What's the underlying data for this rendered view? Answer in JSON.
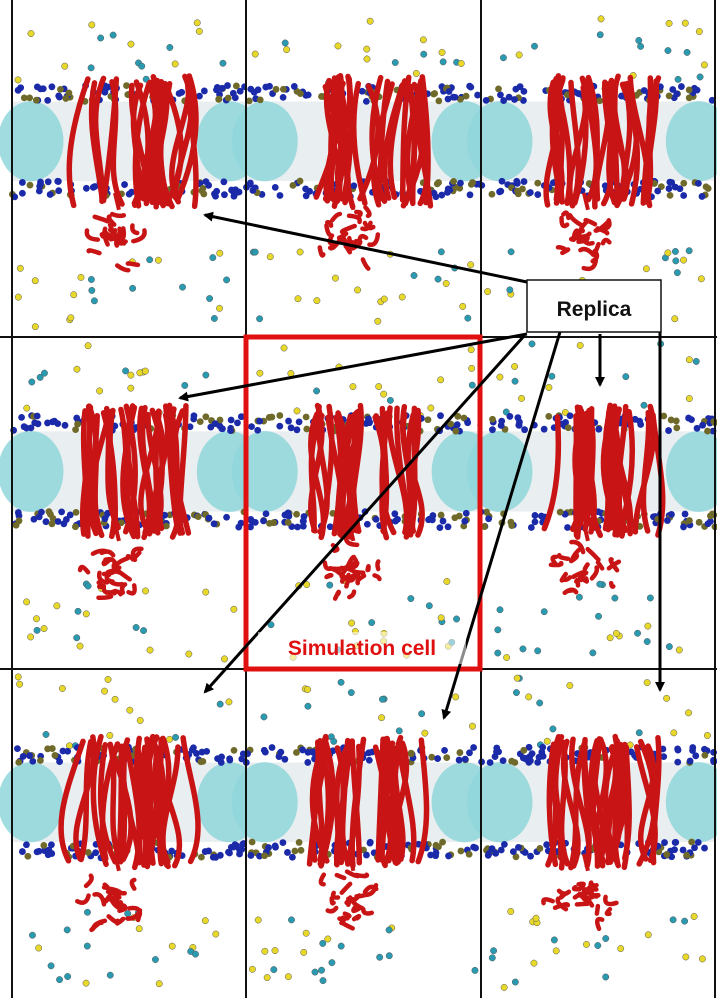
{
  "labels": {
    "replica": "Replica",
    "simulation_cell": "Simulation cell"
  },
  "colors": {
    "protein": "#c81414",
    "lipid_head_blue": "#1a2aa8",
    "lipid_head_olive": "#6f6a2a",
    "channel_cyan": "#8fd6da",
    "ion_yellow": "#e8d82a",
    "ion_teal": "#2a9ab0",
    "grid_line": "#111111",
    "highlight_box": "#e01010",
    "arrow": "#000000"
  },
  "grid": {
    "rows": 3,
    "columns": 3
  },
  "icons": {
    "protein": "protein-ribbon-icon",
    "lipid": "lipid-headgroup-icon",
    "ion": "ion-sphere-icon"
  }
}
